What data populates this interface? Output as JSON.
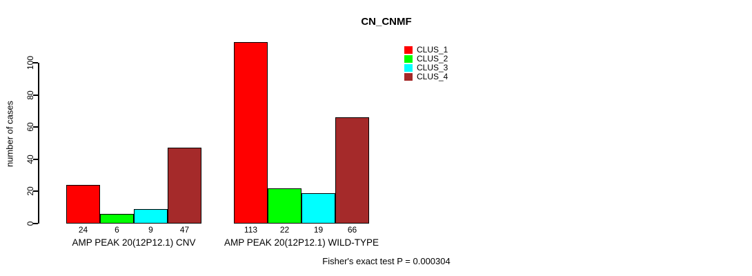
{
  "chart_data": {
    "type": "bar",
    "title": "CN_CNMF",
    "ylabel": "number of cases",
    "ylim": [
      0,
      113
    ],
    "yticks": [
      0,
      20,
      40,
      60,
      80,
      100
    ],
    "grid": false,
    "legend_position": "top-right",
    "categories": [
      "AMP PEAK 20(12P12.1) CNV",
      "AMP PEAK 20(12P12.1) WILD-TYPE"
    ],
    "series": [
      {
        "name": "CLUS_1",
        "color": "#FF0000",
        "values": [
          24,
          113
        ]
      },
      {
        "name": "CLUS_2",
        "color": "#00FF00",
        "values": [
          6,
          22
        ]
      },
      {
        "name": "CLUS_3",
        "color": "#00FFFF",
        "values": [
          9,
          19
        ]
      },
      {
        "name": "CLUS_4",
        "color": "#A52A2A",
        "values": [
          47,
          66
        ]
      }
    ],
    "bar_value_labels": [
      [
        24,
        6,
        9,
        47
      ],
      [
        113,
        22,
        19,
        66
      ]
    ],
    "annotation": "Fisher's exact test P = 0.000304",
    "axis_color": "#000000",
    "background_color": "#FFFFFF"
  }
}
